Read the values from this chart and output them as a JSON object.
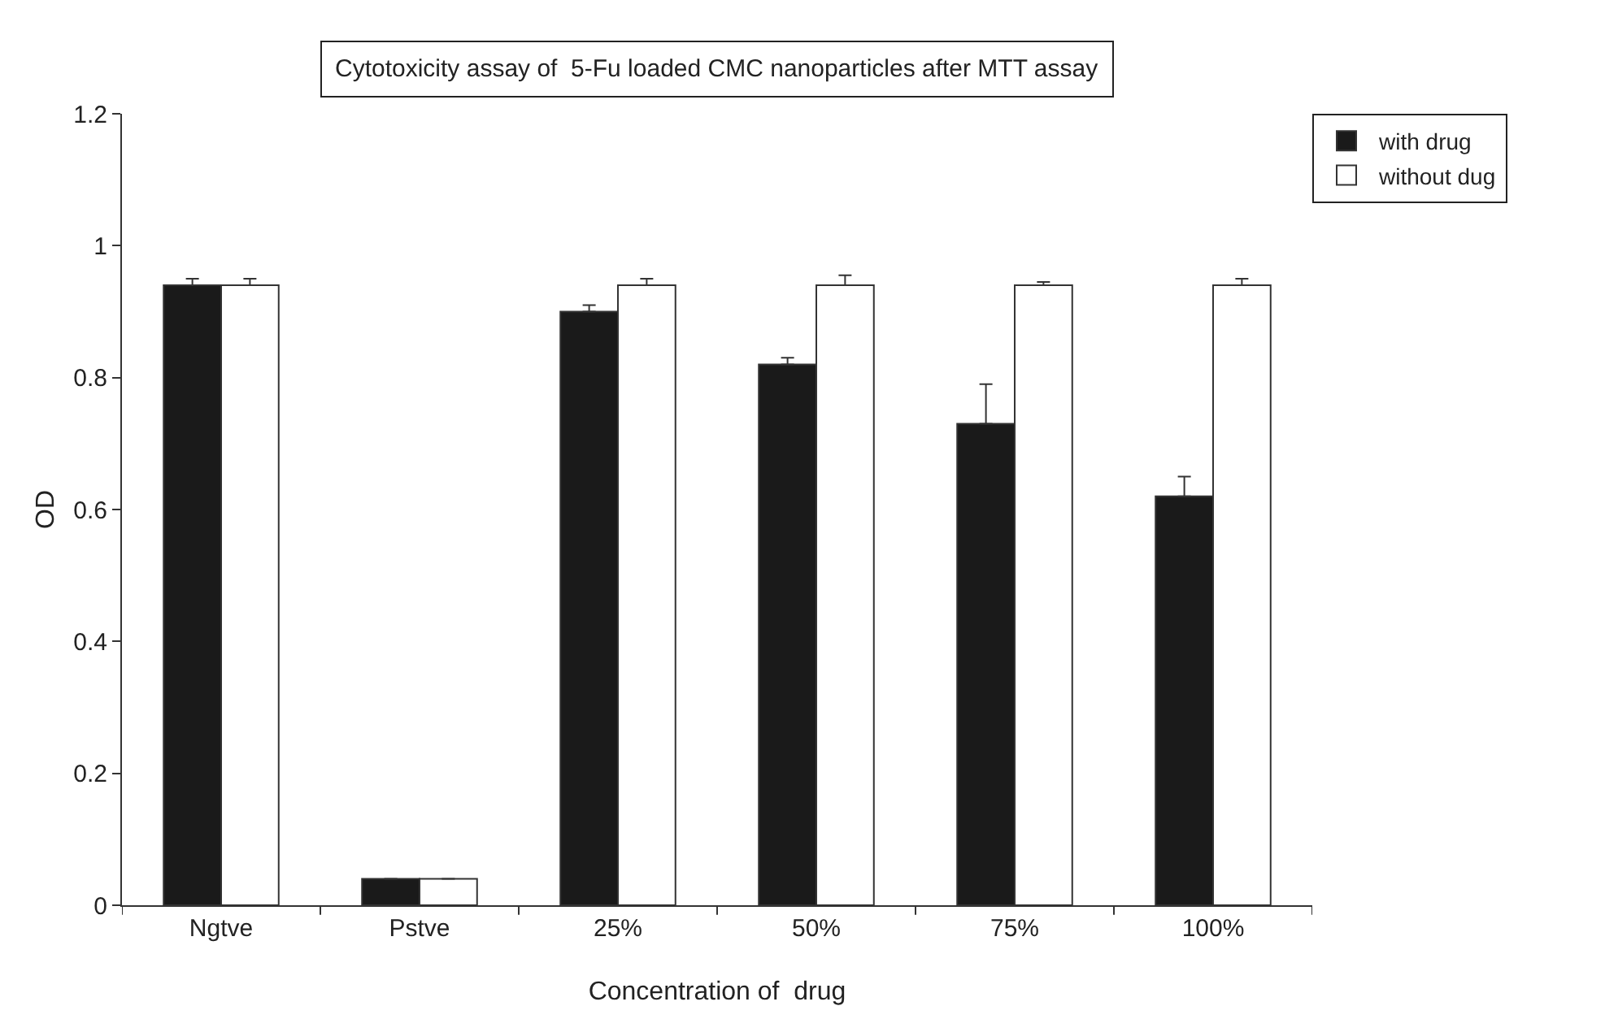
{
  "chart_data": {
    "type": "bar",
    "title": "Cytotoxicity assay of  5-Fu loaded CMC nanoparticles after MTT assay",
    "xlabel": "Concentration of  drug",
    "ylabel": "OD",
    "categories": [
      "Ngtve",
      "Pstve",
      "25%",
      "50%",
      "75%",
      "100%"
    ],
    "series": [
      {
        "name": "with drug",
        "color": "#1a1a1a",
        "values": [
          0.94,
          0.04,
          0.9,
          0.82,
          0.73,
          0.62
        ],
        "errors": [
          [
            0.94,
            0.95
          ],
          null,
          [
            0.9,
            0.91
          ],
          [
            0.82,
            0.83
          ],
          [
            0.73,
            0.79
          ],
          [
            0.62,
            0.65
          ]
        ]
      },
      {
        "name": "without dug",
        "color": "#ffffff",
        "values": [
          0.94,
          0.04,
          0.94,
          0.94,
          0.94,
          0.94
        ],
        "errors": [
          [
            0.94,
            0.95
          ],
          null,
          [
            0.94,
            0.95
          ],
          [
            0.94,
            0.955
          ],
          [
            0.94,
            0.945
          ],
          [
            0.94,
            0.95
          ]
        ]
      }
    ],
    "ylim": [
      0,
      1.2
    ],
    "yticks": [
      0,
      0.2,
      0.4,
      0.6,
      0.8,
      1,
      1.2
    ],
    "grid": false,
    "legend": "top right"
  }
}
